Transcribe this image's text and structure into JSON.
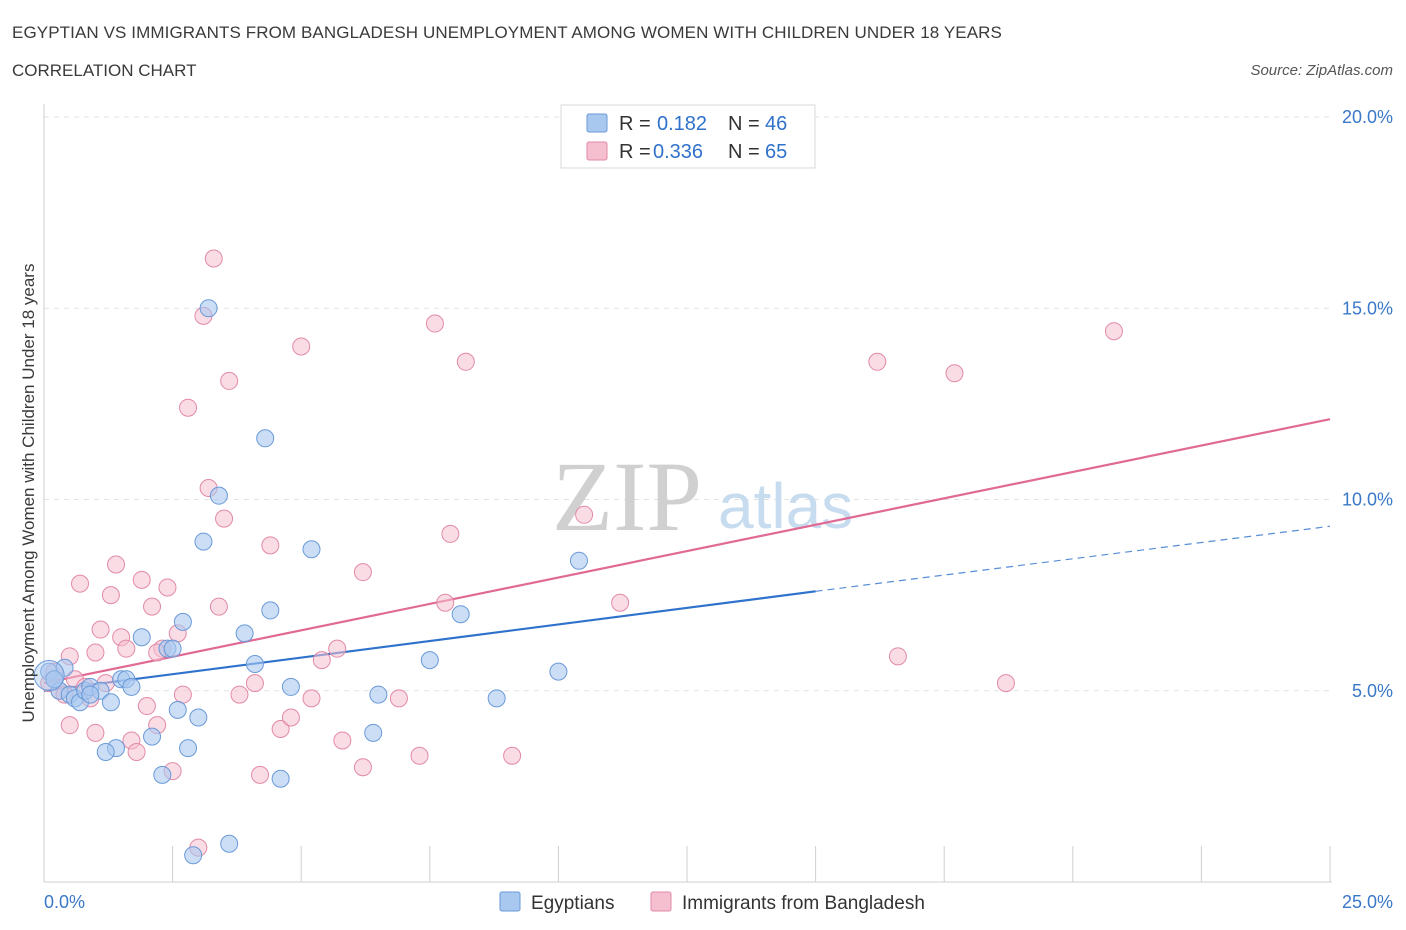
{
  "header": {
    "title": "EGYPTIAN VS IMMIGRANTS FROM BANGLADESH UNEMPLOYMENT AMONG WOMEN WITH CHILDREN UNDER 18 YEARS",
    "subtitle": "CORRELATION CHART",
    "source": "Source: ZipAtlas.com"
  },
  "watermark": {
    "zip": "ZIP",
    "atlas": "atlas"
  },
  "stats_legend": {
    "rows": [
      {
        "r_label": "R =",
        "r_value": "0.182",
        "n_label": "N =",
        "n_value": "46"
      },
      {
        "r_label": "R =",
        "r_value": "0.336",
        "n_label": "N =",
        "n_value": "65"
      }
    ]
  },
  "bottom_legend": {
    "items": [
      "Egyptians",
      "Immigrants from Bangladesh"
    ]
  },
  "chart_data": {
    "type": "scatter",
    "title": "EGYPTIAN VS IMMIGRANTS FROM BANGLADESH UNEMPLOYMENT AMONG WOMEN WITH CHILDREN UNDER 18 YEARS",
    "ylabel": "Unemployment Among Women with Children Under 18 years",
    "xlabel": "",
    "xlim": [
      0,
      25
    ],
    "ylim": [
      0,
      20
    ],
    "x_ticks": [
      "0.0%",
      "25.0%"
    ],
    "y_ticks": [
      {
        "value": 5,
        "label": "5.0%"
      },
      {
        "value": 10,
        "label": "10.0%"
      },
      {
        "value": 15,
        "label": "15.0%"
      },
      {
        "value": 20,
        "label": "20.0%"
      }
    ],
    "grid": true,
    "legend_position": "top-center",
    "colors": {
      "egyptians_fill": "#a9c8f0",
      "egyptians_stroke": "#6a9ad8",
      "egyptians_line": "#2f72cc",
      "bangladesh_fill": "#f5bfd0",
      "bangladesh_stroke": "#e28aa8",
      "bangladesh_line": "#e06a94"
    },
    "series": [
      {
        "name": "Egyptians",
        "r": 0.182,
        "n": 46,
        "trend": {
          "x0": 0,
          "y0": 5.0,
          "x1": 15,
          "y1": 7.6,
          "dashed_to_x": 25,
          "dashed_to_y": 9.3
        },
        "points": [
          [
            0.1,
            5.5
          ],
          [
            0.2,
            5.3
          ],
          [
            0.3,
            5.0
          ],
          [
            0.4,
            5.6
          ],
          [
            0.5,
            4.9
          ],
          [
            0.6,
            4.8
          ],
          [
            0.7,
            4.7
          ],
          [
            0.8,
            5.0
          ],
          [
            0.9,
            5.1
          ],
          [
            1.1,
            5.0
          ],
          [
            1.3,
            4.7
          ],
          [
            1.5,
            5.3
          ],
          [
            1.6,
            5.3
          ],
          [
            1.7,
            5.1
          ],
          [
            1.9,
            6.4
          ],
          [
            2.1,
            3.8
          ],
          [
            2.3,
            2.8
          ],
          [
            2.4,
            6.1
          ],
          [
            2.5,
            6.1
          ],
          [
            2.6,
            4.5
          ],
          [
            2.7,
            6.8
          ],
          [
            2.8,
            3.5
          ],
          [
            3.0,
            4.3
          ],
          [
            3.1,
            8.9
          ],
          [
            3.2,
            15.0
          ],
          [
            3.4,
            10.1
          ],
          [
            3.6,
            1.0
          ],
          [
            3.9,
            6.5
          ],
          [
            4.1,
            5.7
          ],
          [
            4.3,
            11.6
          ],
          [
            4.4,
            7.1
          ],
          [
            4.6,
            2.7
          ],
          [
            4.8,
            5.1
          ],
          [
            5.2,
            8.7
          ],
          [
            6.5,
            4.9
          ],
          [
            6.4,
            3.9
          ],
          [
            7.5,
            5.8
          ],
          [
            8.1,
            7.0
          ],
          [
            8.8,
            4.8
          ],
          [
            10.0,
            5.5
          ],
          [
            10.4,
            8.4
          ],
          [
            2.9,
            0.7
          ],
          [
            1.4,
            3.5
          ],
          [
            0.2,
            5.3
          ],
          [
            0.9,
            4.9
          ],
          [
            1.2,
            3.4
          ]
        ]
      },
      {
        "name": "Immigrants from Bangladesh",
        "r": 0.336,
        "n": 65,
        "trend": {
          "x0": 0,
          "y0": 5.2,
          "x1": 25,
          "y1": 12.1
        },
        "points": [
          [
            0.1,
            5.2
          ],
          [
            0.2,
            5.5
          ],
          [
            0.3,
            5.0
          ],
          [
            0.4,
            4.9
          ],
          [
            0.5,
            5.9
          ],
          [
            0.6,
            5.3
          ],
          [
            0.7,
            7.8
          ],
          [
            0.8,
            5.1
          ],
          [
            0.9,
            4.8
          ],
          [
            1.0,
            6.0
          ],
          [
            1.1,
            6.6
          ],
          [
            1.2,
            5.2
          ],
          [
            1.3,
            7.5
          ],
          [
            1.4,
            8.3
          ],
          [
            1.5,
            6.4
          ],
          [
            1.6,
            6.1
          ],
          [
            1.7,
            3.7
          ],
          [
            1.8,
            3.4
          ],
          [
            1.9,
            7.9
          ],
          [
            2.0,
            4.6
          ],
          [
            2.1,
            7.2
          ],
          [
            2.2,
            4.1
          ],
          [
            2.3,
            6.1
          ],
          [
            2.4,
            7.7
          ],
          [
            2.5,
            2.9
          ],
          [
            2.6,
            6.5
          ],
          [
            2.7,
            4.9
          ],
          [
            2.8,
            12.4
          ],
          [
            3.0,
            0.9
          ],
          [
            3.1,
            14.8
          ],
          [
            3.2,
            10.3
          ],
          [
            3.3,
            16.3
          ],
          [
            3.4,
            7.2
          ],
          [
            3.5,
            9.5
          ],
          [
            3.6,
            13.1
          ],
          [
            3.8,
            4.9
          ],
          [
            4.1,
            5.2
          ],
          [
            4.2,
            2.8
          ],
          [
            4.4,
            8.8
          ],
          [
            4.6,
            4.0
          ],
          [
            4.8,
            4.3
          ],
          [
            5.0,
            14.0
          ],
          [
            5.2,
            4.8
          ],
          [
            5.4,
            5.8
          ],
          [
            5.7,
            6.1
          ],
          [
            5.8,
            3.7
          ],
          [
            6.2,
            8.1
          ],
          [
            6.2,
            3.0
          ],
          [
            6.9,
            4.8
          ],
          [
            7.3,
            3.3
          ],
          [
            7.6,
            14.6
          ],
          [
            7.8,
            7.3
          ],
          [
            7.9,
            9.1
          ],
          [
            8.2,
            13.6
          ],
          [
            9.1,
            3.3
          ],
          [
            10.5,
            9.6
          ],
          [
            11.2,
            7.3
          ],
          [
            16.2,
            13.6
          ],
          [
            16.6,
            5.9
          ],
          [
            17.7,
            13.3
          ],
          [
            18.7,
            5.2
          ],
          [
            20.8,
            14.4
          ],
          [
            0.5,
            4.1
          ],
          [
            1.0,
            3.9
          ],
          [
            2.2,
            6.0
          ]
        ]
      }
    ]
  }
}
